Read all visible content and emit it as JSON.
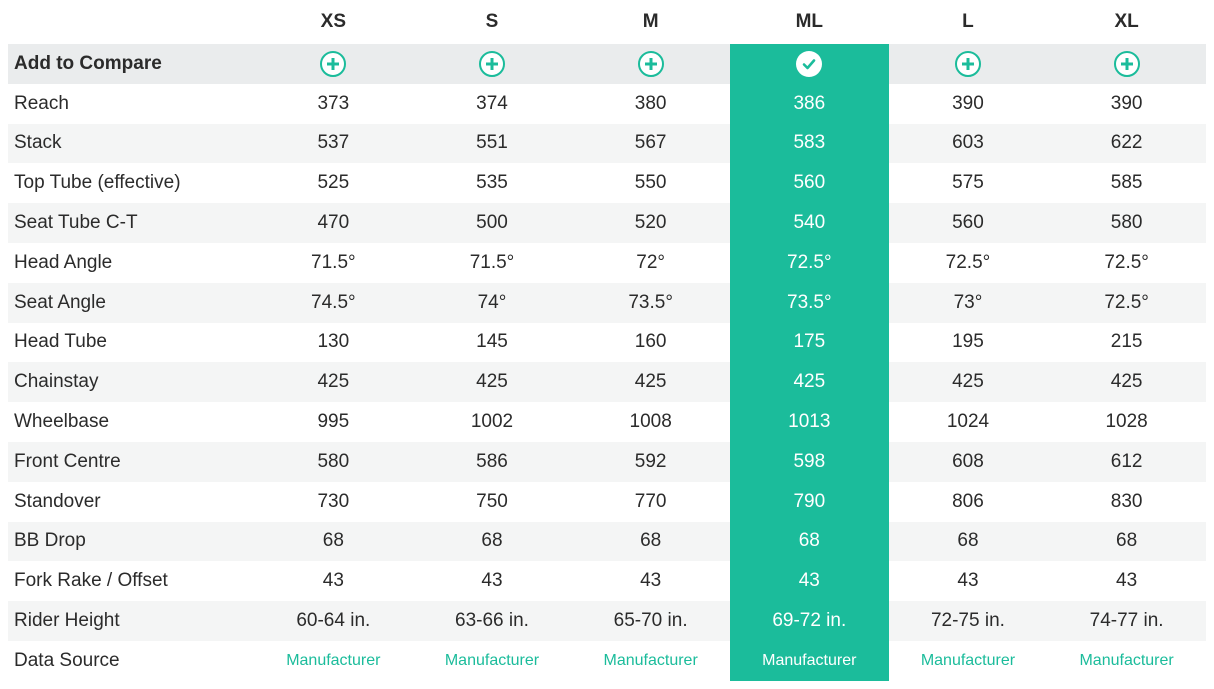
{
  "colors": {
    "accent": "#1bbc9b",
    "row_shade": "#f4f5f5",
    "compare_row": "#eaeced",
    "text": "#2b2b2b"
  },
  "sizes": [
    "XS",
    "S",
    "M",
    "ML",
    "L",
    "XL"
  ],
  "selected_size": "ML",
  "compare_row": {
    "label": "Add to Compare",
    "icons": [
      "plus-circle-icon",
      "plus-circle-icon",
      "plus-circle-icon",
      "check-circle-icon",
      "plus-circle-icon",
      "plus-circle-icon"
    ]
  },
  "rows": [
    {
      "label": "Reach",
      "values": [
        "373",
        "374",
        "380",
        "386",
        "390",
        "390"
      ]
    },
    {
      "label": "Stack",
      "values": [
        "537",
        "551",
        "567",
        "583",
        "603",
        "622"
      ]
    },
    {
      "label": "Top Tube (effective)",
      "values": [
        "525",
        "535",
        "550",
        "560",
        "575",
        "585"
      ]
    },
    {
      "label": "Seat Tube C-T",
      "values": [
        "470",
        "500",
        "520",
        "540",
        "560",
        "580"
      ]
    },
    {
      "label": "Head Angle",
      "values": [
        "71.5°",
        "71.5°",
        "72°",
        "72.5°",
        "72.5°",
        "72.5°"
      ]
    },
    {
      "label": "Seat Angle",
      "values": [
        "74.5°",
        "74°",
        "73.5°",
        "73.5°",
        "73°",
        "72.5°"
      ]
    },
    {
      "label": "Head Tube",
      "values": [
        "130",
        "145",
        "160",
        "175",
        "195",
        "215"
      ]
    },
    {
      "label": "Chainstay",
      "values": [
        "425",
        "425",
        "425",
        "425",
        "425",
        "425"
      ]
    },
    {
      "label": "Wheelbase",
      "values": [
        "995",
        "1002",
        "1008",
        "1013",
        "1024",
        "1028"
      ]
    },
    {
      "label": "Front Centre",
      "values": [
        "580",
        "586",
        "592",
        "598",
        "608",
        "612"
      ]
    },
    {
      "label": "Standover",
      "values": [
        "730",
        "750",
        "770",
        "790",
        "806",
        "830"
      ]
    },
    {
      "label": "BB Drop",
      "values": [
        "68",
        "68",
        "68",
        "68",
        "68",
        "68"
      ]
    },
    {
      "label": "Fork Rake / Offset",
      "values": [
        "43",
        "43",
        "43",
        "43",
        "43",
        "43"
      ]
    },
    {
      "label": "Rider Height",
      "values": [
        "60-64 in.",
        "63-66 in.",
        "65-70 in.",
        "69-72 in.",
        "72-75 in.",
        "74-77 in."
      ]
    }
  ],
  "source_row": {
    "label": "Data Source",
    "values": [
      "Manufacturer",
      "Manufacturer",
      "Manufacturer",
      "Manufacturer",
      "Manufacturer",
      "Manufacturer"
    ]
  }
}
